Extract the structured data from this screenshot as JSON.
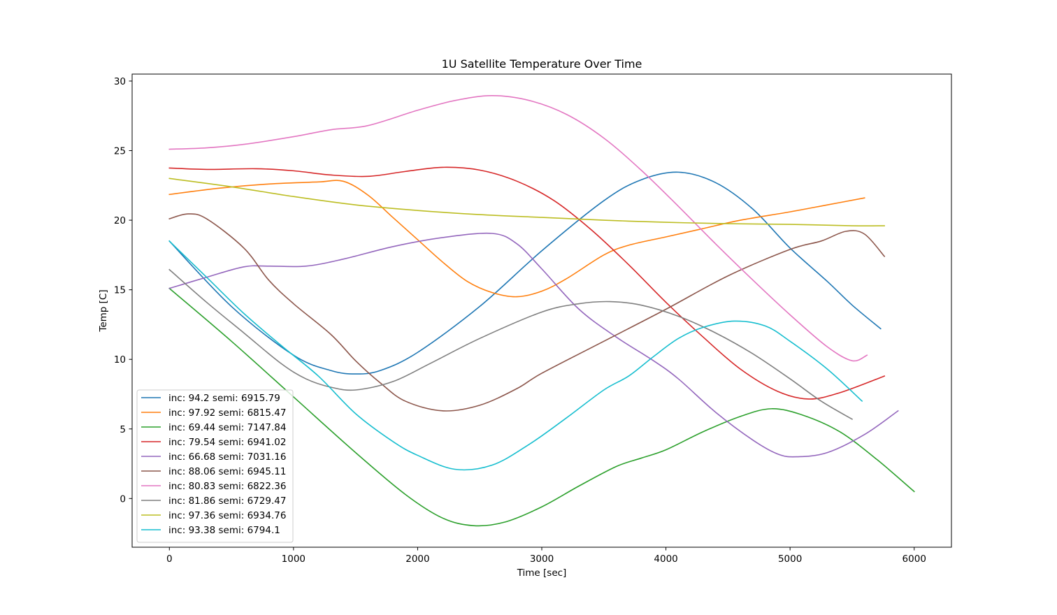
{
  "chart_data": {
    "type": "line",
    "title": "1U Satellite Temperature Over Time",
    "xlabel": "Time [sec]",
    "ylabel": "Temp [C]",
    "xlim": [
      -300,
      6300
    ],
    "ylim": [
      -3.5,
      30.5
    ],
    "xticks": [
      0,
      1000,
      2000,
      3000,
      4000,
      5000,
      6000
    ],
    "yticks": [
      0,
      5,
      10,
      15,
      20,
      25,
      30
    ],
    "grid": false,
    "legend_position": "lower-left",
    "series": [
      {
        "name": "inc: 94.2 semi: 6915.79",
        "color": "#1f77b4",
        "points": [
          [
            0,
            18.5
          ],
          [
            500,
            13.8
          ],
          [
            1000,
            10.3
          ],
          [
            1300,
            9.2
          ],
          [
            1500,
            8.95
          ],
          [
            1700,
            9.2
          ],
          [
            2000,
            10.5
          ],
          [
            2500,
            13.8
          ],
          [
            3000,
            17.8
          ],
          [
            3500,
            21.4
          ],
          [
            3800,
            22.9
          ],
          [
            4100,
            23.45
          ],
          [
            4400,
            22.7
          ],
          [
            4700,
            20.8
          ],
          [
            5000,
            18.0
          ],
          [
            5300,
            15.6
          ],
          [
            5500,
            13.9
          ],
          [
            5730,
            12.2
          ]
        ]
      },
      {
        "name": "inc: 97.92 semi: 6815.47",
        "color": "#ff7f0e",
        "points": [
          [
            0,
            21.85
          ],
          [
            400,
            22.3
          ],
          [
            800,
            22.6
          ],
          [
            1200,
            22.75
          ],
          [
            1400,
            22.8
          ],
          [
            1600,
            21.8
          ],
          [
            1800,
            20.2
          ],
          [
            2000,
            18.6
          ],
          [
            2200,
            17.0
          ],
          [
            2400,
            15.6
          ],
          [
            2600,
            14.8
          ],
          [
            2800,
            14.5
          ],
          [
            3000,
            14.9
          ],
          [
            3200,
            15.8
          ],
          [
            3500,
            17.5
          ],
          [
            3700,
            18.2
          ],
          [
            4000,
            18.8
          ],
          [
            4300,
            19.4
          ],
          [
            4600,
            20.0
          ],
          [
            5000,
            20.6
          ],
          [
            5300,
            21.1
          ],
          [
            5600,
            21.6
          ]
        ]
      },
      {
        "name": "inc: 69.44 semi: 7147.84",
        "color": "#2ca02c",
        "points": [
          [
            0,
            15.1
          ],
          [
            500,
            11.3
          ],
          [
            1000,
            7.3
          ],
          [
            1500,
            3.3
          ],
          [
            1900,
            0.3
          ],
          [
            2200,
            -1.4
          ],
          [
            2450,
            -1.95
          ],
          [
            2700,
            -1.7
          ],
          [
            3000,
            -0.6
          ],
          [
            3300,
            0.9
          ],
          [
            3600,
            2.3
          ],
          [
            3800,
            2.9
          ],
          [
            4000,
            3.5
          ],
          [
            4300,
            4.8
          ],
          [
            4600,
            5.9
          ],
          [
            4850,
            6.45
          ],
          [
            5100,
            6.0
          ],
          [
            5400,
            4.8
          ],
          [
            5700,
            2.8
          ],
          [
            6000,
            0.5
          ]
        ]
      },
      {
        "name": "inc: 79.54 semi: 6941.02",
        "color": "#d62728",
        "points": [
          [
            0,
            23.75
          ],
          [
            300,
            23.65
          ],
          [
            700,
            23.7
          ],
          [
            1000,
            23.55
          ],
          [
            1300,
            23.25
          ],
          [
            1600,
            23.15
          ],
          [
            1900,
            23.5
          ],
          [
            2200,
            23.8
          ],
          [
            2500,
            23.6
          ],
          [
            2800,
            22.8
          ],
          [
            3100,
            21.4
          ],
          [
            3400,
            19.3
          ],
          [
            3700,
            16.8
          ],
          [
            4000,
            14.1
          ],
          [
            4300,
            11.6
          ],
          [
            4600,
            9.3
          ],
          [
            4900,
            7.7
          ],
          [
            5150,
            7.15
          ],
          [
            5400,
            7.6
          ],
          [
            5760,
            8.8
          ]
        ]
      },
      {
        "name": "inc: 66.68 semi: 7031.16",
        "color": "#9467bd",
        "points": [
          [
            0,
            15.1
          ],
          [
            300,
            15.9
          ],
          [
            600,
            16.65
          ],
          [
            800,
            16.7
          ],
          [
            1100,
            16.7
          ],
          [
            1400,
            17.2
          ],
          [
            1800,
            18.1
          ],
          [
            2200,
            18.75
          ],
          [
            2600,
            19.05
          ],
          [
            2800,
            18.3
          ],
          [
            3000,
            16.5
          ],
          [
            3300,
            13.6
          ],
          [
            3600,
            11.6
          ],
          [
            3900,
            9.9
          ],
          [
            4100,
            8.6
          ],
          [
            4400,
            6.2
          ],
          [
            4700,
            4.2
          ],
          [
            4900,
            3.2
          ],
          [
            5050,
            3.0
          ],
          [
            5300,
            3.3
          ],
          [
            5600,
            4.6
          ],
          [
            5870,
            6.3
          ]
        ]
      },
      {
        "name": "inc: 88.06 semi: 6945.11",
        "color": "#8c564b",
        "points": [
          [
            0,
            20.1
          ],
          [
            150,
            20.45
          ],
          [
            300,
            20.1
          ],
          [
            600,
            18.0
          ],
          [
            800,
            15.7
          ],
          [
            1000,
            14.0
          ],
          [
            1300,
            11.8
          ],
          [
            1500,
            9.9
          ],
          [
            1700,
            8.3
          ],
          [
            1900,
            7.0
          ],
          [
            2200,
            6.3
          ],
          [
            2500,
            6.7
          ],
          [
            2800,
            7.9
          ],
          [
            3000,
            9.0
          ],
          [
            3500,
            11.3
          ],
          [
            4000,
            13.6
          ],
          [
            4500,
            16.0
          ],
          [
            5000,
            17.9
          ],
          [
            5250,
            18.5
          ],
          [
            5450,
            19.2
          ],
          [
            5600,
            19.0
          ],
          [
            5760,
            17.4
          ]
        ]
      },
      {
        "name": "inc: 80.83 semi: 6822.36",
        "color": "#e377c2",
        "points": [
          [
            0,
            25.1
          ],
          [
            300,
            25.2
          ],
          [
            600,
            25.45
          ],
          [
            1000,
            26.0
          ],
          [
            1300,
            26.5
          ],
          [
            1600,
            26.8
          ],
          [
            2000,
            27.9
          ],
          [
            2300,
            28.6
          ],
          [
            2600,
            28.95
          ],
          [
            2900,
            28.6
          ],
          [
            3200,
            27.6
          ],
          [
            3500,
            25.9
          ],
          [
            3800,
            23.6
          ],
          [
            4100,
            21.0
          ],
          [
            4400,
            18.3
          ],
          [
            4700,
            15.7
          ],
          [
            5000,
            13.2
          ],
          [
            5300,
            10.9
          ],
          [
            5500,
            9.9
          ],
          [
            5620,
            10.3
          ]
        ]
      },
      {
        "name": "inc: 81.86 semi: 6729.47",
        "color": "#7f7f7f",
        "points": [
          [
            0,
            16.45
          ],
          [
            300,
            14.1
          ],
          [
            600,
            11.9
          ],
          [
            900,
            9.7
          ],
          [
            1100,
            8.6
          ],
          [
            1300,
            8.0
          ],
          [
            1500,
            7.8
          ],
          [
            1800,
            8.4
          ],
          [
            2100,
            9.7
          ],
          [
            2500,
            11.5
          ],
          [
            3000,
            13.4
          ],
          [
            3300,
            14.0
          ],
          [
            3550,
            14.15
          ],
          [
            3800,
            13.9
          ],
          [
            4100,
            13.1
          ],
          [
            4400,
            11.9
          ],
          [
            4700,
            10.4
          ],
          [
            5000,
            8.6
          ],
          [
            5250,
            7.0
          ],
          [
            5500,
            5.7
          ]
        ]
      },
      {
        "name": "inc: 97.36 semi: 6934.76",
        "color": "#bcbd22",
        "points": [
          [
            0,
            23.0
          ],
          [
            500,
            22.4
          ],
          [
            1000,
            21.7
          ],
          [
            1500,
            21.1
          ],
          [
            2000,
            20.7
          ],
          [
            2500,
            20.4
          ],
          [
            3000,
            20.2
          ],
          [
            3500,
            20.0
          ],
          [
            4000,
            19.85
          ],
          [
            4500,
            19.75
          ],
          [
            5000,
            19.7
          ],
          [
            5500,
            19.6
          ],
          [
            5760,
            19.6
          ]
        ]
      },
      {
        "name": "inc: 93.38 semi: 6794.1",
        "color": "#17becf",
        "points": [
          [
            0,
            18.5
          ],
          [
            300,
            15.9
          ],
          [
            600,
            13.3
          ],
          [
            900,
            11.0
          ],
          [
            1200,
            8.8
          ],
          [
            1500,
            6.1
          ],
          [
            1800,
            4.1
          ],
          [
            2000,
            3.1
          ],
          [
            2300,
            2.1
          ],
          [
            2600,
            2.4
          ],
          [
            2900,
            3.9
          ],
          [
            3200,
            5.8
          ],
          [
            3500,
            7.8
          ],
          [
            3700,
            8.8
          ],
          [
            3900,
            10.2
          ],
          [
            4100,
            11.5
          ],
          [
            4300,
            12.3
          ],
          [
            4550,
            12.75
          ],
          [
            4800,
            12.4
          ],
          [
            5000,
            11.3
          ],
          [
            5300,
            9.3
          ],
          [
            5580,
            7.0
          ]
        ]
      }
    ]
  }
}
